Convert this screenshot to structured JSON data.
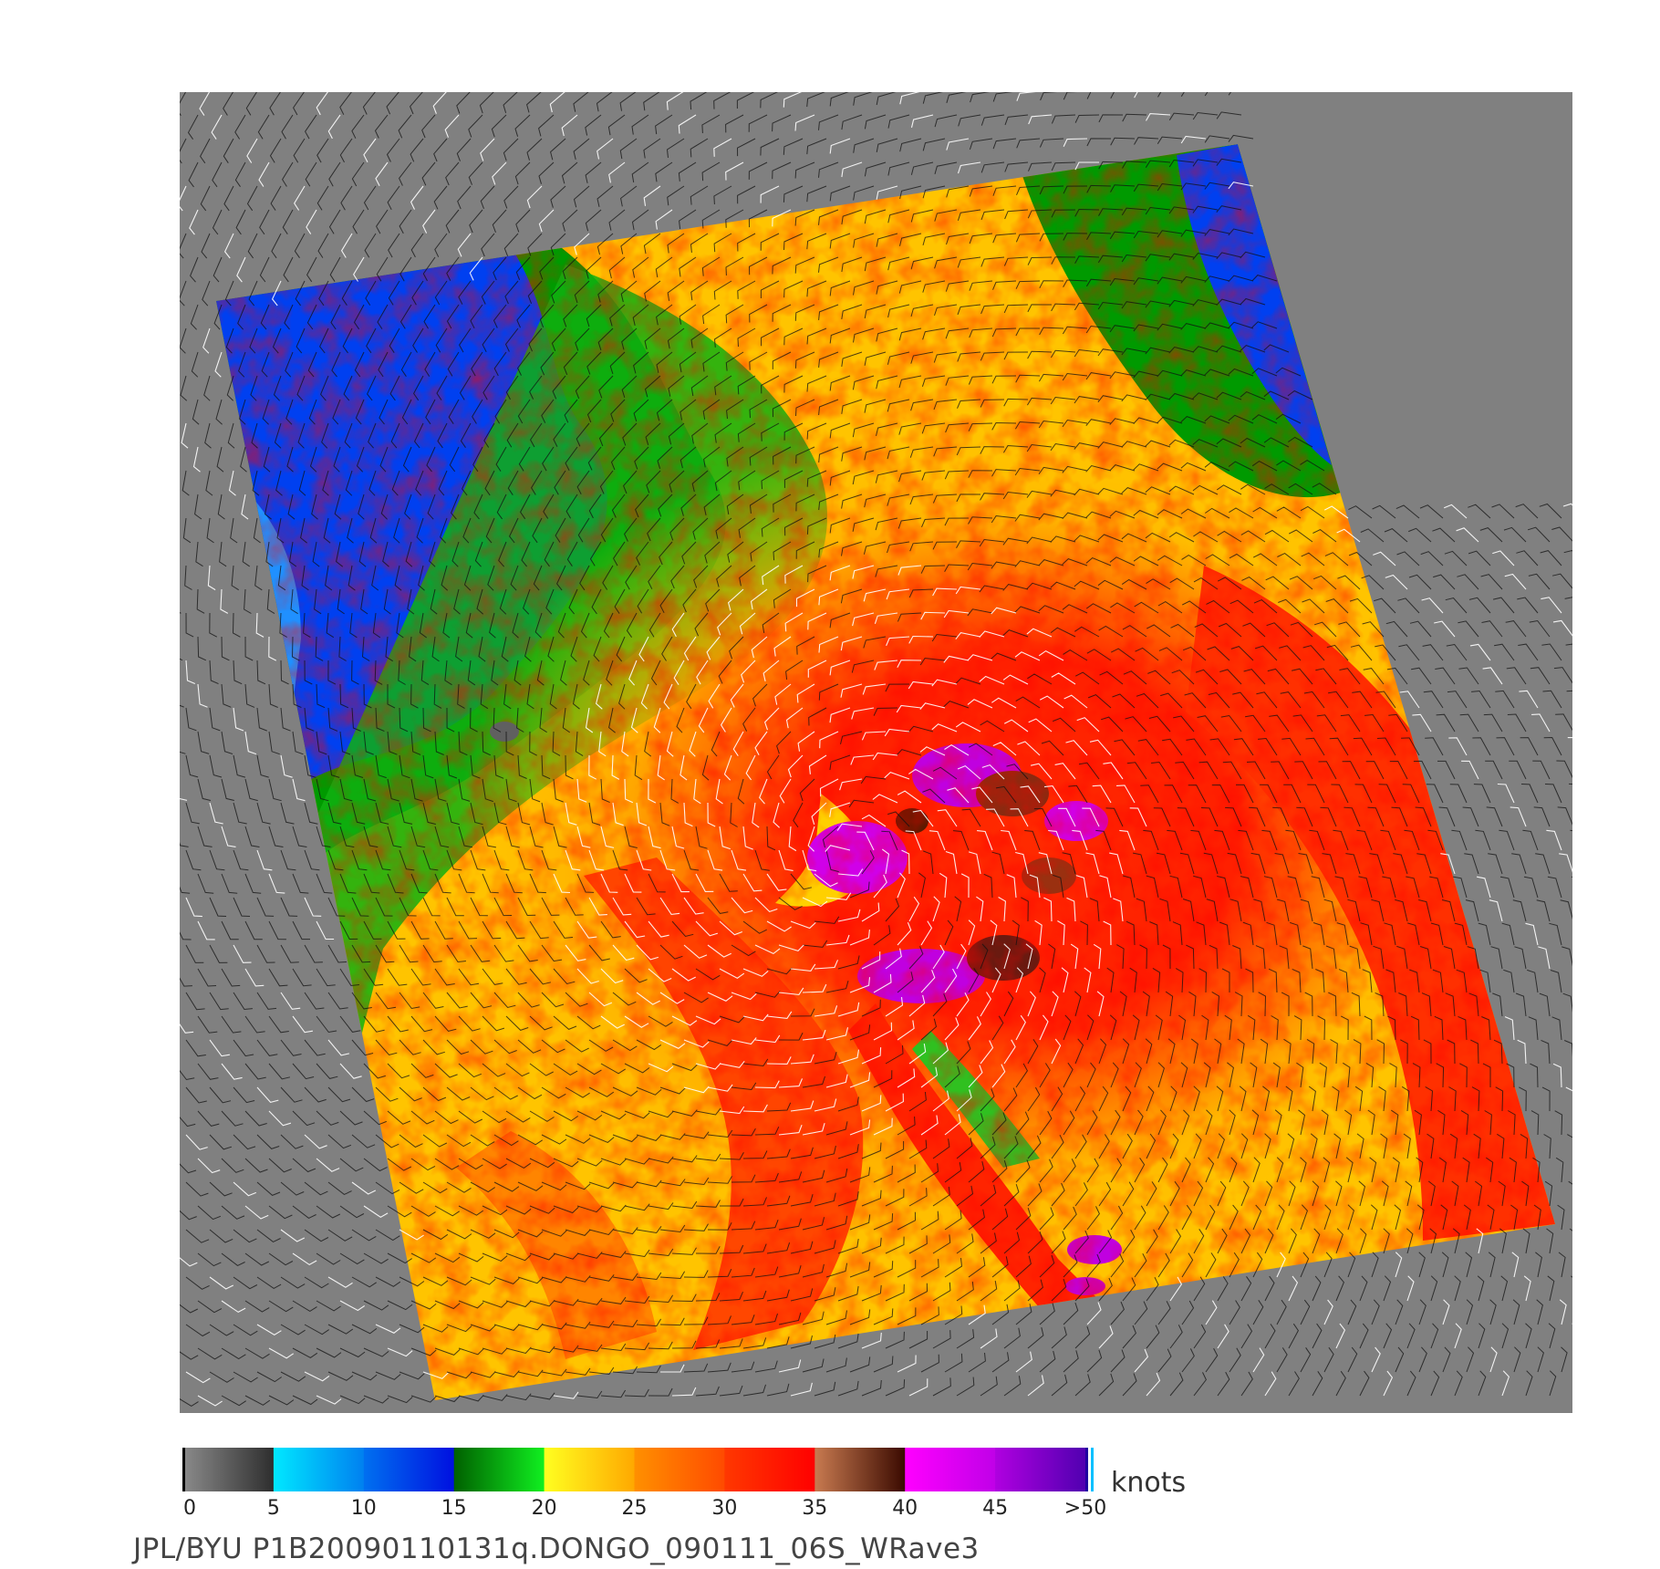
{
  "figure": {
    "caption": "JPL/BYU  P1B20090110131q.DONGO_090111_06S_WRave3",
    "units": "knots"
  },
  "colorbar": {
    "ticks": [
      "0",
      "5",
      "10",
      "15",
      "20",
      "25",
      "30",
      "35",
      "40",
      "45",
      ">50"
    ],
    "segments": [
      {
        "from": 0,
        "to": 5,
        "colors": [
          "#8a8a8a",
          "#2e2e2e"
        ]
      },
      {
        "from": 5,
        "to": 10,
        "colors": [
          "#00e8ff",
          "#0080f0"
        ]
      },
      {
        "from": 10,
        "to": 15,
        "colors": [
          "#0070f0",
          "#0010e0"
        ]
      },
      {
        "from": 15,
        "to": 20,
        "colors": [
          "#006000",
          "#10f020"
        ]
      },
      {
        "from": 20,
        "to": 25,
        "colors": [
          "#ffff20",
          "#ffa800"
        ]
      },
      {
        "from": 25,
        "to": 30,
        "colors": [
          "#ff9000",
          "#ff4a00"
        ]
      },
      {
        "from": 30,
        "to": 35,
        "colors": [
          "#ff3800",
          "#ff0000"
        ]
      },
      {
        "from": 35,
        "to": 40,
        "colors": [
          "#c87a50",
          "#3a0a00"
        ]
      },
      {
        "from": 40,
        "to": 45,
        "colors": [
          "#ff00ff",
          "#c000e8"
        ]
      },
      {
        "from": 45,
        "to": 50,
        "colors": [
          "#b000e0",
          "#5000b0"
        ]
      }
    ],
    "end_stripes": [
      "#2000a0",
      "#ffffff",
      "#00c0ff"
    ]
  },
  "field": {
    "background_color": "#808080",
    "storm_center": "lower-center-left",
    "land_patch_color": "#606060"
  }
}
